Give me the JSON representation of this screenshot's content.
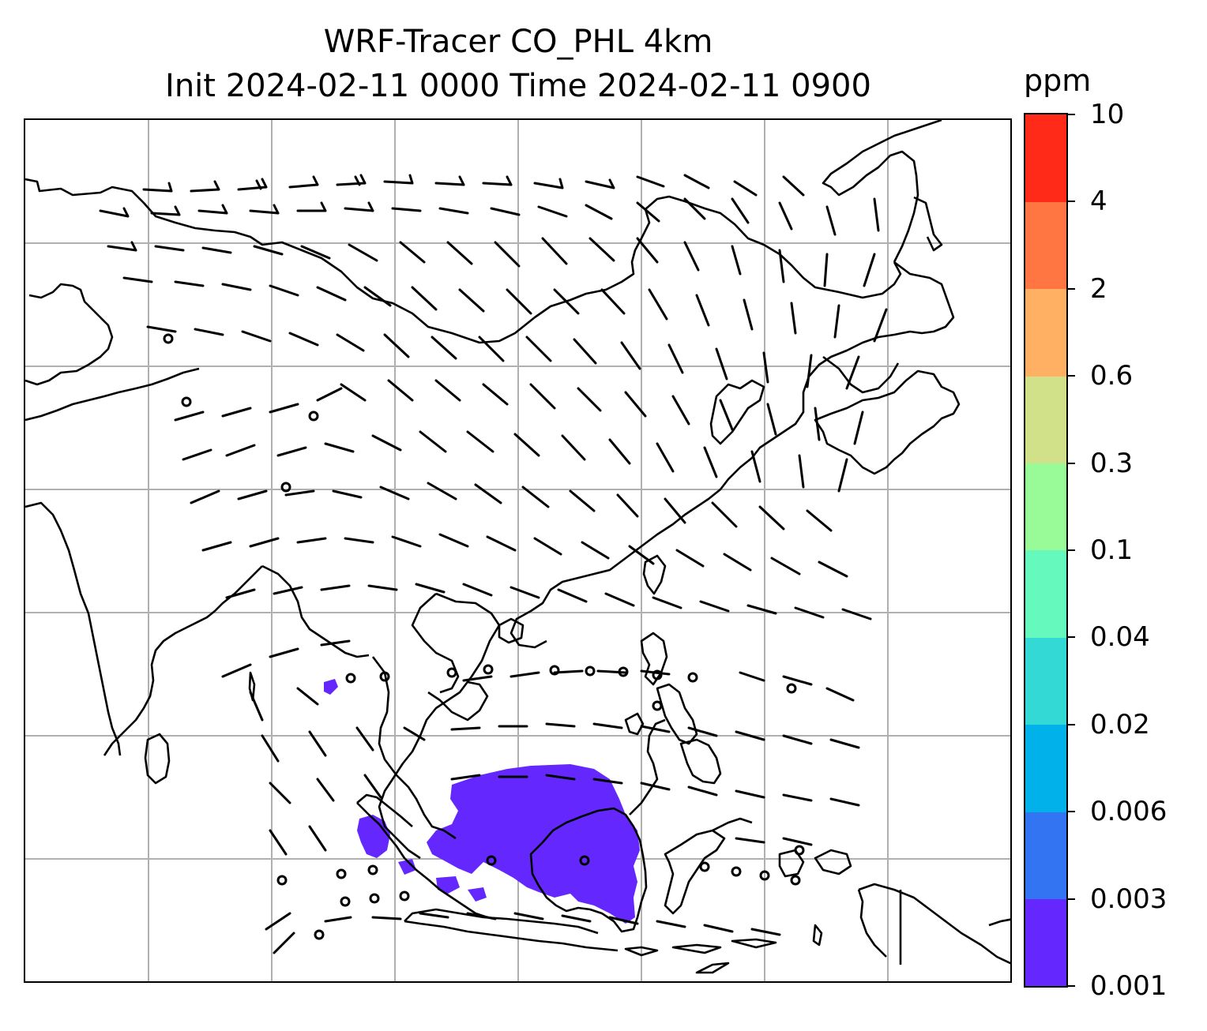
{
  "figure": {
    "title_line1": "WRF-Tracer CO_PHL 4km",
    "title_line2": "Init 2024-02-11 0000 Time 2024-02-11 0900"
  },
  "map": {
    "projection": "lat-lon grid",
    "gridlines": true,
    "gridline_color": "#b0b0b0",
    "coastline_color": "#000000",
    "wind_barbs": true,
    "tracer_fill_color": "#6428ff",
    "tracer_fill_location": "Java Sea / Borneo region, lowest colorbar bin"
  },
  "colorbar": {
    "unit": "ppm",
    "levels": [
      "0.001",
      "0.003",
      "0.006",
      "0.02",
      "0.04",
      "0.1",
      "0.3",
      "0.6",
      "2",
      "4",
      "10"
    ],
    "colors": [
      "#6428ff",
      "#3374f2",
      "#00b1ea",
      "#33dad5",
      "#66f9bd",
      "#99fb98",
      "#d0e18a",
      "#ffb062",
      "#ff7642",
      "#ff2a17"
    ]
  }
}
